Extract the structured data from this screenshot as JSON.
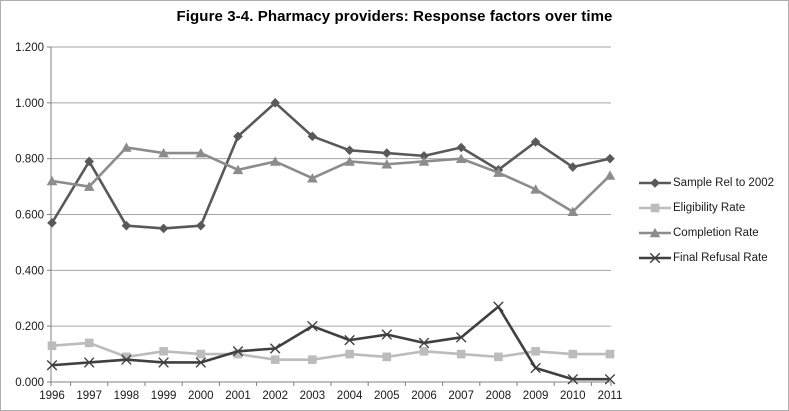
{
  "chart_data": {
    "type": "line",
    "title": "Figure 3-4. Pharmacy providers: Response factors over time",
    "xlabel": "",
    "ylabel": "",
    "categories": [
      "1996",
      "1997",
      "1998",
      "1999",
      "2000",
      "2001",
      "2002",
      "2003",
      "2004",
      "2005",
      "2006",
      "2007",
      "2008",
      "2009",
      "2010",
      "2011"
    ],
    "series": [
      {
        "name": "Sample Rel to 2002",
        "marker": "diamond",
        "color": "#595959",
        "values": [
          0.57,
          0.79,
          0.56,
          0.55,
          0.56,
          0.88,
          1.0,
          0.88,
          0.83,
          0.82,
          0.81,
          0.84,
          0.76,
          0.86,
          0.77,
          0.8
        ]
      },
      {
        "name": "Eligibility Rate",
        "marker": "square",
        "color": "#bcbcbc",
        "values": [
          0.13,
          0.14,
          0.09,
          0.11,
          0.1,
          0.1,
          0.08,
          0.08,
          0.1,
          0.09,
          0.11,
          0.1,
          0.09,
          0.11,
          0.1,
          0.1
        ]
      },
      {
        "name": "Completion Rate",
        "marker": "triangle",
        "color": "#8c8c8c",
        "values": [
          0.72,
          0.7,
          0.84,
          0.82,
          0.82,
          0.76,
          0.79,
          0.73,
          0.79,
          0.78,
          0.79,
          0.8,
          0.75,
          0.69,
          0.61,
          0.74
        ]
      },
      {
        "name": "Final Refusal Rate",
        "marker": "x",
        "color": "#404040",
        "values": [
          0.06,
          0.07,
          0.08,
          0.07,
          0.07,
          0.11,
          0.12,
          0.2,
          0.15,
          0.17,
          0.14,
          0.16,
          0.27,
          0.05,
          0.01,
          0.01
        ]
      }
    ],
    "ylim": [
      0,
      1.2
    ],
    "ytick_labels": [
      "0.000",
      "0.200",
      "0.400",
      "0.600",
      "0.800",
      "1.000",
      "1.200"
    ],
    "grid": true,
    "legend_position": "right"
  },
  "colors": {
    "background": "#ffffff",
    "border": "#aeaeae",
    "gridline": "#a6a6a6",
    "axis": "#808080",
    "tick_text": "#1a1a1a",
    "title_text": "#000000"
  }
}
